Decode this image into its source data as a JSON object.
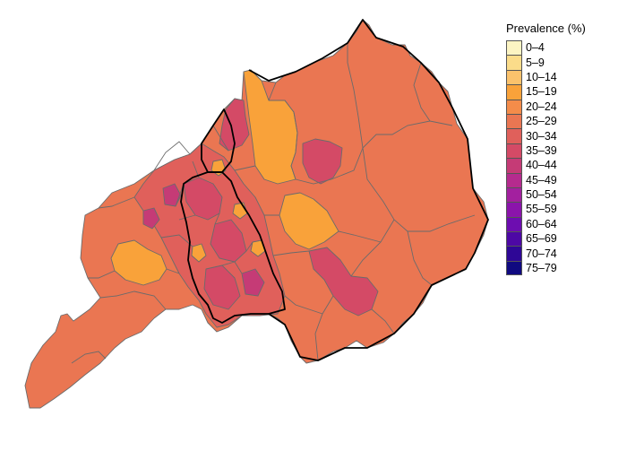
{
  "legend": {
    "title": "Prevalence (%)",
    "items": [
      {
        "label": "0–4",
        "color": "#fcf4c3"
      },
      {
        "label": "5–9",
        "color": "#fbdc8a"
      },
      {
        "label": "10–14",
        "color": "#fbc26c"
      },
      {
        "label": "15–19",
        "color": "#f9a23a"
      },
      {
        "label": "20–24",
        "color": "#f48c4a"
      },
      {
        "label": "25–29",
        "color": "#ea7652"
      },
      {
        "label": "30–34",
        "color": "#e0605b"
      },
      {
        "label": "35–39",
        "color": "#d44a66"
      },
      {
        "label": "40–44",
        "color": "#c53b76"
      },
      {
        "label": "45–49",
        "color": "#b52b8e"
      },
      {
        "label": "50–54",
        "color": "#a3209f"
      },
      {
        "label": "55–59",
        "color": "#8b14ab"
      },
      {
        "label": "60–64",
        "color": "#6d0db0"
      },
      {
        "label": "65–69",
        "color": "#4d08a5"
      },
      {
        "label": "70–74",
        "color": "#2e0796"
      },
      {
        "label": "75–79",
        "color": "#100a80"
      }
    ]
  },
  "map": {
    "base_color": "#ea7652",
    "border_color": "#6b6b6b",
    "outline_color": "#000000"
  }
}
